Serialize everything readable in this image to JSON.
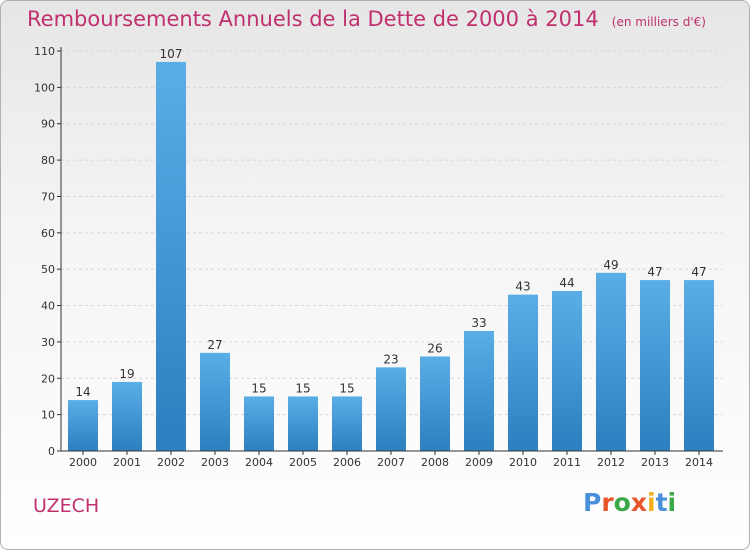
{
  "header": {
    "title": "Remboursements Annuels de la Dette de 2000 à 2014",
    "subtitle": "(en milliers d'€)"
  },
  "footer": {
    "town": "UZECH",
    "logo": "Proxiti"
  },
  "colors": {
    "title": "#c0306f",
    "bar_top": "#5aaee6",
    "bar_bottom": "#2c7fc0",
    "grid": "#d6d6d6",
    "axis": "#333333"
  },
  "chart_data": {
    "type": "bar",
    "categories": [
      "2000",
      "2001",
      "2002",
      "2003",
      "2004",
      "2005",
      "2006",
      "2007",
      "2008",
      "2009",
      "2010",
      "2011",
      "2012",
      "2013",
      "2014"
    ],
    "values": [
      14,
      19,
      107,
      27,
      15,
      15,
      15,
      23,
      26,
      33,
      43,
      44,
      49,
      47,
      47
    ],
    "title": "Remboursements Annuels de la Dette de 2000 à 2014",
    "subtitle": "(en milliers d'€)",
    "ylim": [
      0,
      110
    ],
    "yticks": [
      0,
      10,
      20,
      30,
      40,
      50,
      60,
      70,
      80,
      90,
      100,
      110
    ],
    "grid": true,
    "grid_style": "dashed horizontal",
    "data_labels": true
  }
}
